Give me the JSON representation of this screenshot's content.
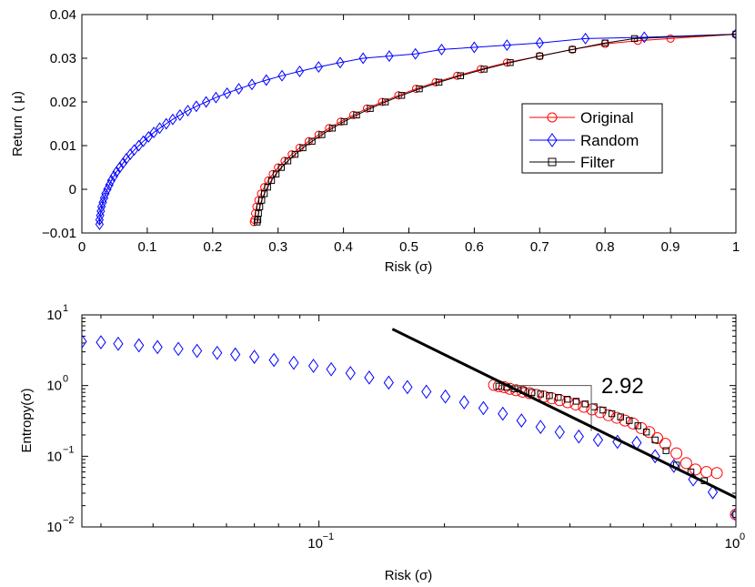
{
  "chart_data": [
    {
      "type": "line",
      "xlabel": "Risk (σ)",
      "ylabel": "Return ( μ)",
      "xlim": [
        0,
        1
      ],
      "ylim": [
        -0.01,
        0.04
      ],
      "xticks": [
        0,
        0.1,
        0.2,
        0.3,
        0.4,
        0.5,
        0.6,
        0.7,
        0.8,
        0.9,
        1
      ],
      "xtick_labels": [
        "0",
        "0.1",
        "0.2",
        "0.3",
        "0.4",
        "0.5",
        "0.6",
        "0.7",
        "0.8",
        "0.9",
        "1"
      ],
      "yticks": [
        -0.01,
        0,
        0.01,
        0.02,
        0.03,
        0.04
      ],
      "ytick_labels": [
        "−0.01",
        "0",
        "0.01",
        "0.02",
        "0.03",
        "0.04"
      ],
      "legend_position": "right",
      "series": [
        {
          "name": "Original",
          "color": "#ff0000",
          "marker": "circle",
          "x": [
            0.263,
            0.264,
            0.265,
            0.267,
            0.27,
            0.274,
            0.279,
            0.285,
            0.292,
            0.3,
            0.31,
            0.321,
            0.333,
            0.347,
            0.362,
            0.378,
            0.396,
            0.415,
            0.436,
            0.459,
            0.484,
            0.511,
            0.541,
            0.574,
            0.61,
            0.65,
            0.7,
            0.75,
            0.8,
            0.85,
            0.9,
            1.0
          ],
          "y": [
            -0.0075,
            -0.007,
            -0.0055,
            -0.004,
            -0.0025,
            -0.001,
            0.0005,
            0.002,
            0.0035,
            0.005,
            0.0065,
            0.008,
            0.0095,
            0.011,
            0.0125,
            0.014,
            0.0155,
            0.017,
            0.0185,
            0.02,
            0.0215,
            0.023,
            0.0245,
            0.026,
            0.0275,
            0.029,
            0.0305,
            0.032,
            0.0333,
            0.034,
            0.0345,
            0.0355
          ]
        },
        {
          "name": "Random",
          "color": "#0000ff",
          "marker": "diamond",
          "x": [
            0.027,
            0.027,
            0.028,
            0.029,
            0.03,
            0.032,
            0.034,
            0.036,
            0.039,
            0.042,
            0.045,
            0.049,
            0.053,
            0.058,
            0.063,
            0.068,
            0.074,
            0.08,
            0.087,
            0.094,
            0.102,
            0.11,
            0.119,
            0.129,
            0.139,
            0.15,
            0.162,
            0.175,
            0.19,
            0.205,
            0.222,
            0.24,
            0.26,
            0.282,
            0.306,
            0.333,
            0.362,
            0.395,
            0.43,
            0.47,
            0.51,
            0.55,
            0.6,
            0.65,
            0.7,
            0.77,
            0.86,
            1.0
          ],
          "y": [
            -0.008,
            -0.007,
            -0.006,
            -0.005,
            -0.004,
            -0.003,
            -0.002,
            -0.001,
            0.0,
            0.001,
            0.002,
            0.003,
            0.004,
            0.005,
            0.006,
            0.007,
            0.008,
            0.009,
            0.01,
            0.011,
            0.012,
            0.013,
            0.014,
            0.015,
            0.016,
            0.017,
            0.018,
            0.019,
            0.02,
            0.021,
            0.022,
            0.023,
            0.024,
            0.025,
            0.026,
            0.027,
            0.028,
            0.029,
            0.03,
            0.0305,
            0.031,
            0.032,
            0.0325,
            0.033,
            0.0335,
            0.0345,
            0.0348,
            0.0355
          ]
        },
        {
          "name": "Filter",
          "color": "#000000",
          "marker": "square",
          "x": [
            0.268,
            0.269,
            0.27,
            0.272,
            0.275,
            0.279,
            0.284,
            0.29,
            0.297,
            0.305,
            0.315,
            0.326,
            0.338,
            0.352,
            0.367,
            0.383,
            0.401,
            0.42,
            0.441,
            0.464,
            0.489,
            0.516,
            0.546,
            0.579,
            0.615,
            0.655,
            0.7,
            0.75,
            0.8,
            0.845,
            1.0
          ],
          "y": [
            -0.0075,
            -0.007,
            -0.0055,
            -0.004,
            -0.0025,
            -0.001,
            0.0005,
            0.002,
            0.0035,
            0.005,
            0.0065,
            0.008,
            0.0095,
            0.011,
            0.0125,
            0.014,
            0.0155,
            0.017,
            0.0185,
            0.02,
            0.0215,
            0.023,
            0.0245,
            0.026,
            0.0275,
            0.029,
            0.0305,
            0.032,
            0.0335,
            0.0345,
            0.0355
          ]
        }
      ]
    },
    {
      "type": "scatter",
      "scale": "log-log",
      "xlabel": "Risk (σ)",
      "ylabel": "Entropy(σ)",
      "xlim": [
        0.027,
        1
      ],
      "ylim": [
        0.01,
        10
      ],
      "xticks": [
        0.1,
        1
      ],
      "xtick_base": "10",
      "xtick_exponents": [
        "−1",
        "0"
      ],
      "yticks": [
        0.01,
        0.1,
        1,
        10
      ],
      "ytick_base": "10",
      "ytick_exponents": [
        "−2",
        "−1",
        "0",
        "1"
      ],
      "annotation": "2.92",
      "fit_line": {
        "color": "#000000",
        "x": [
          0.15,
          1.0
        ],
        "y": [
          6.3,
          0.026
        ]
      },
      "slope_triangle": {
        "x": [
          0.27,
          0.45
        ],
        "y": [
          1.0,
          0.227
        ]
      },
      "series": [
        {
          "name": "Random",
          "color": "#0000ff",
          "marker": "diamond",
          "x": [
            0.027,
            0.03,
            0.033,
            0.037,
            0.041,
            0.046,
            0.051,
            0.057,
            0.063,
            0.07,
            0.078,
            0.087,
            0.097,
            0.107,
            0.119,
            0.132,
            0.147,
            0.163,
            0.181,
            0.201,
            0.223,
            0.248,
            0.276,
            0.306,
            0.34,
            0.378,
            0.42,
            0.467,
            0.52,
            0.578,
            0.64,
            0.71,
            0.79,
            0.88,
            1.0
          ],
          "y": [
            4.2,
            4.1,
            3.9,
            3.7,
            3.5,
            3.3,
            3.1,
            2.9,
            2.75,
            2.55,
            2.3,
            2.1,
            1.9,
            1.7,
            1.5,
            1.3,
            1.1,
            0.95,
            0.82,
            0.7,
            0.58,
            0.48,
            0.4,
            0.32,
            0.26,
            0.22,
            0.19,
            0.17,
            0.16,
            0.155,
            0.1,
            0.073,
            0.047,
            0.031,
            0.015
          ]
        },
        {
          "name": "Original",
          "color": "#ff0000",
          "marker": "circle",
          "x": [
            0.263,
            0.27,
            0.278,
            0.287,
            0.297,
            0.308,
            0.32,
            0.333,
            0.347,
            0.362,
            0.378,
            0.395,
            0.413,
            0.432,
            0.452,
            0.473,
            0.495,
            0.518,
            0.542,
            0.567,
            0.593,
            0.62,
            0.648,
            0.677,
            0.72,
            0.76,
            0.8,
            0.85,
            0.9,
            1.0
          ],
          "y": [
            1.02,
            0.98,
            0.95,
            0.9,
            0.86,
            0.82,
            0.78,
            0.74,
            0.7,
            0.66,
            0.62,
            0.58,
            0.54,
            0.5,
            0.46,
            0.42,
            0.38,
            0.35,
            0.32,
            0.29,
            0.25,
            0.22,
            0.18,
            0.15,
            0.11,
            0.08,
            0.065,
            0.06,
            0.058,
            0.015
          ]
        },
        {
          "name": "Filter",
          "color": "#000000",
          "marker": "square",
          "x": [
            0.27,
            0.282,
            0.295,
            0.309,
            0.324,
            0.34,
            0.357,
            0.375,
            0.394,
            0.414,
            0.435,
            0.457,
            0.48,
            0.504,
            0.529,
            0.555,
            0.582,
            0.61,
            0.64,
            0.68,
            0.72,
            0.78,
            0.84,
            1.0
          ],
          "y": [
            0.98,
            0.95,
            0.9,
            0.85,
            0.8,
            0.76,
            0.72,
            0.68,
            0.64,
            0.6,
            0.55,
            0.5,
            0.45,
            0.4,
            0.36,
            0.32,
            0.27,
            0.22,
            0.17,
            0.12,
            0.075,
            0.06,
            0.045,
            0.015
          ]
        }
      ]
    }
  ]
}
